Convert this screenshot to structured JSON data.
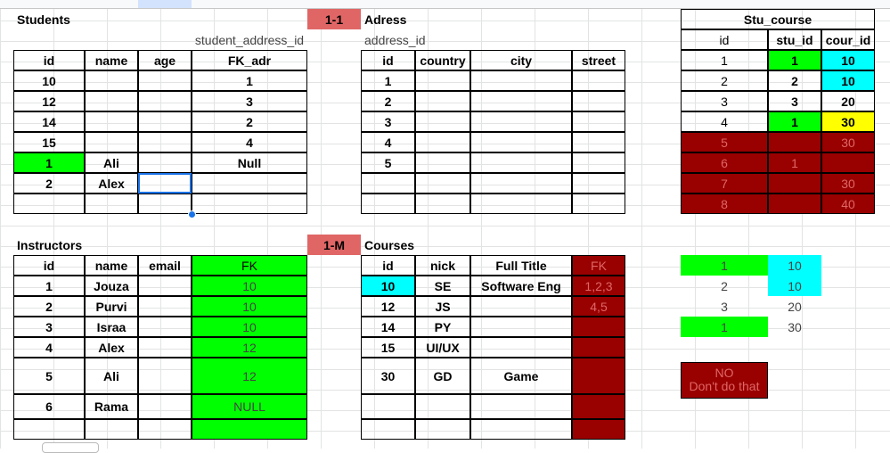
{
  "students": {
    "title": "Students",
    "note": "student_address_id",
    "headers": [
      "id",
      "name",
      "age",
      "FK_adr"
    ],
    "rows": [
      [
        "10",
        "",
        "",
        "1"
      ],
      [
        "12",
        "",
        "",
        "3"
      ],
      [
        "14",
        "",
        "",
        "2"
      ],
      [
        "15",
        "",
        "",
        "4"
      ],
      [
        "1",
        "Ali",
        "",
        "Null"
      ],
      [
        "2",
        "Alex",
        "",
        ""
      ]
    ]
  },
  "relation_1_1": "1-1",
  "relation_1_m": "1-M",
  "address": {
    "title": "Adress",
    "note": "address_id",
    "headers": [
      "id",
      "country",
      "city",
      "street"
    ],
    "rows": [
      "1",
      "2",
      "3",
      "4",
      "5"
    ]
  },
  "stu_course": {
    "title": "Stu_course",
    "headers": [
      "id",
      "stu_id",
      "cour_id"
    ],
    "rows": [
      [
        "1",
        "1",
        "10"
      ],
      [
        "2",
        "2",
        "10"
      ],
      [
        "3",
        "3",
        "20"
      ],
      [
        "4",
        "1",
        "30"
      ],
      [
        "5",
        "",
        "30"
      ],
      [
        "6",
        "1",
        ""
      ],
      [
        "7",
        "",
        "30"
      ],
      [
        "8",
        "",
        "40"
      ]
    ]
  },
  "instructors": {
    "title": "Instructors",
    "headers": [
      "id",
      "name",
      "email",
      "FK"
    ],
    "rows": [
      [
        "1",
        "Jouza",
        "",
        "10"
      ],
      [
        "2",
        "Purvi",
        "",
        "10"
      ],
      [
        "3",
        "Israa",
        "",
        "10"
      ],
      [
        "4",
        "Alex",
        "",
        "12"
      ],
      [
        "5",
        "Ali",
        "",
        "12"
      ],
      [
        "6",
        "Rama",
        "",
        "NULL"
      ]
    ]
  },
  "courses": {
    "title": "Courses",
    "headers": [
      "id",
      "nick",
      "Full Title",
      "FK"
    ],
    "rows": [
      [
        "10",
        "SE",
        "Software Eng",
        "1,2,3"
      ],
      [
        "12",
        "JS",
        "",
        "4,5"
      ],
      [
        "14",
        "PY",
        "",
        ""
      ],
      [
        "15",
        "UI/UX",
        "",
        ""
      ],
      [
        "30",
        "GD",
        "Game",
        ""
      ]
    ]
  },
  "example": {
    "rows": [
      [
        "1",
        "10"
      ],
      [
        "2",
        "10"
      ],
      [
        "3",
        "20"
      ],
      [
        "1",
        "30"
      ]
    ],
    "warning_line1": "NO",
    "warning_line2": "Don't do that"
  },
  "colors": {
    "green": "#00ff00",
    "cyan": "#00ffff",
    "yellow": "#ffff00",
    "dark_red": "#990000",
    "salmon": "#e06666",
    "selection": "#1a73e8"
  }
}
